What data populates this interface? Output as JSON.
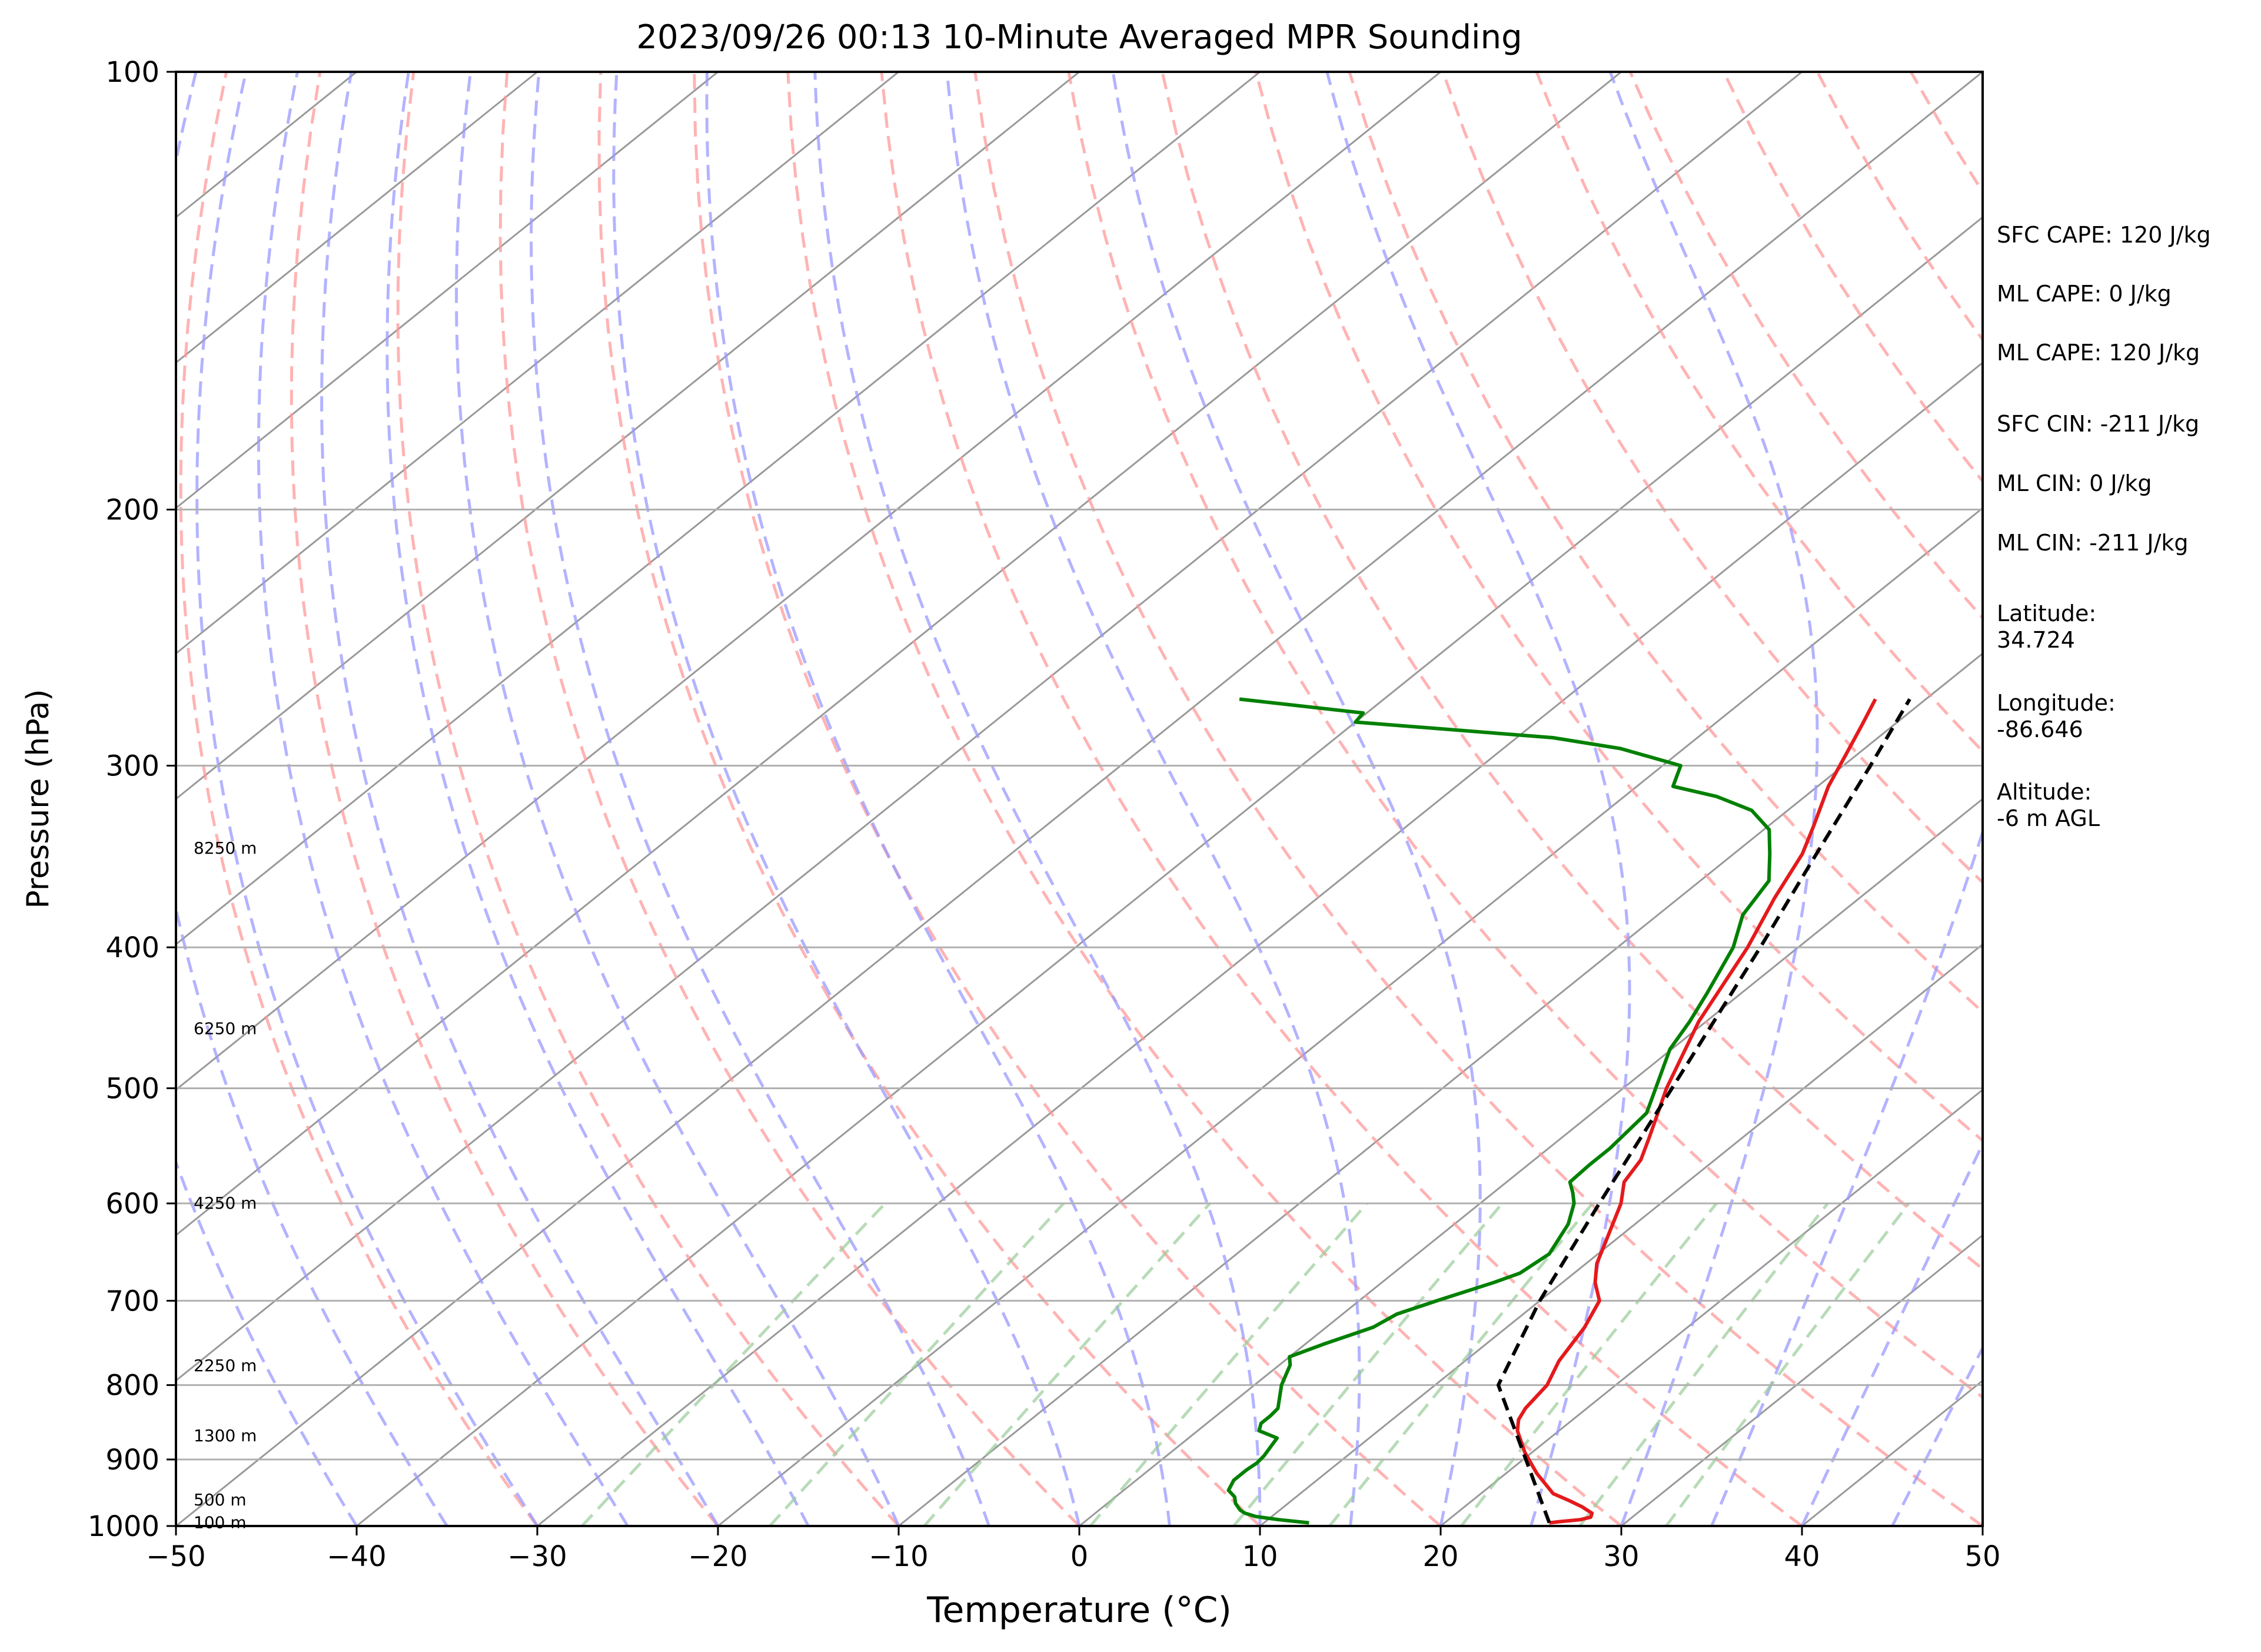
{
  "chart_data": {
    "type": "line",
    "title": "2023/09/26 00:13 10-Minute Averaged MPR Sounding",
    "xlabel": "Temperature (°C)",
    "ylabel": "Pressure (hPa)",
    "xlim": [
      -50,
      50
    ],
    "ylim": [
      1000,
      100
    ],
    "y_scale": "log",
    "skew": "skew-T",
    "grid": true,
    "x_ticks": [
      -50,
      -40,
      -30,
      -20,
      -10,
      0,
      10,
      20,
      30,
      40,
      50
    ],
    "x_tick_labels": [
      "−50",
      "−40",
      "−30",
      "−20",
      "−10",
      "0",
      "10",
      "20",
      "30",
      "40",
      "50"
    ],
    "y_ticks": [
      1000,
      900,
      800,
      700,
      600,
      500,
      400,
      300,
      200,
      100
    ],
    "y_tick_labels": [
      "1000",
      "900",
      "800",
      "700",
      "600",
      "500",
      "400",
      "300",
      "200",
      "100"
    ],
    "height_labels": [
      {
        "p": 995,
        "text": "100 m"
      },
      {
        "p": 960,
        "text": "500 m"
      },
      {
        "p": 867,
        "text": "1300 m"
      },
      {
        "p": 776,
        "text": "2250 m"
      },
      {
        "p": 600,
        "text": "4250 m"
      },
      {
        "p": 455,
        "text": "6250 m"
      },
      {
        "p": 342,
        "text": "8250 m"
      }
    ],
    "series": [
      {
        "color": "#e41a1c",
        "style": "solid",
        "points": [
          [
            995,
            25.8
          ],
          [
            993,
            26.3
          ],
          [
            990,
            27.3
          ],
          [
            986,
            27.7
          ],
          [
            980,
            27.5
          ],
          [
            970,
            26.5
          ],
          [
            960,
            25.3
          ],
          [
            950,
            24.0
          ],
          [
            920,
            21.7
          ],
          [
            890,
            19.6
          ],
          [
            860,
            17.7
          ],
          [
            845,
            17.0
          ],
          [
            830,
            16.6
          ],
          [
            800,
            16.2
          ],
          [
            770,
            15.2
          ],
          [
            730,
            14.3
          ],
          [
            700,
            13.3
          ],
          [
            680,
            11.8
          ],
          [
            660,
            10.6
          ],
          [
            640,
            9.7
          ],
          [
            600,
            7.8
          ],
          [
            580,
            6.5
          ],
          [
            560,
            5.9
          ],
          [
            540,
            4.8
          ],
          [
            500,
            2.4
          ],
          [
            450,
            -0.4
          ],
          [
            400,
            -2.8
          ],
          [
            370,
            -4.7
          ],
          [
            345,
            -6.2
          ],
          [
            330,
            -7.5
          ],
          [
            310,
            -9.4
          ],
          [
            295,
            -10.6
          ],
          [
            282,
            -11.7
          ],
          [
            270,
            -12.8
          ]
        ]
      },
      {
        "color": "#008000",
        "style": "solid",
        "points": [
          [
            995,
            12.5
          ],
          [
            990,
            10.6
          ],
          [
            985,
            9.1
          ],
          [
            980,
            8.3
          ],
          [
            975,
            7.8
          ],
          [
            965,
            7.1
          ],
          [
            955,
            6.6
          ],
          [
            945,
            5.8
          ],
          [
            930,
            5.4
          ],
          [
            915,
            5.4
          ],
          [
            905,
            5.5
          ],
          [
            895,
            5.4
          ],
          [
            880,
            5.1
          ],
          [
            870,
            4.9
          ],
          [
            860,
            3.4
          ],
          [
            850,
            3.0
          ],
          [
            840,
            3.0
          ],
          [
            830,
            2.9
          ],
          [
            800,
            1.5
          ],
          [
            775,
            0.6
          ],
          [
            765,
            0.0
          ],
          [
            750,
            1.0
          ],
          [
            730,
            2.6
          ],
          [
            715,
            3.0
          ],
          [
            700,
            4.3
          ],
          [
            680,
            6.2
          ],
          [
            670,
            7.0
          ],
          [
            650,
            7.3
          ],
          [
            620,
            6.3
          ],
          [
            600,
            5.2
          ],
          [
            590,
            4.4
          ],
          [
            580,
            3.5
          ],
          [
            565,
            3.4
          ],
          [
            550,
            3.4
          ],
          [
            520,
            3.0
          ],
          [
            500,
            1.8
          ],
          [
            470,
            -0.1
          ],
          [
            450,
            -0.9
          ],
          [
            430,
            -1.9
          ],
          [
            400,
            -3.6
          ],
          [
            380,
            -5.3
          ],
          [
            360,
            -6.2
          ],
          [
            345,
            -8.0
          ],
          [
            332,
            -9.7
          ],
          [
            322,
            -12.0
          ],
          [
            315,
            -14.9
          ],
          [
            310,
            -18.0
          ],
          [
            300,
            -19.0
          ],
          [
            292,
            -23.5
          ],
          [
            287,
            -28.0
          ],
          [
            280,
            -40.0
          ],
          [
            276,
            -40.2
          ],
          [
            270,
            -48.0
          ]
        ]
      },
      {
        "color": "#000000",
        "style": "dashed",
        "points": [
          [
            995,
            25.8
          ],
          [
            800,
            13.5
          ],
          [
            700,
            10.0
          ],
          [
            600,
            6.6
          ],
          [
            500,
            2.7
          ],
          [
            400,
            -2.1
          ],
          [
            350,
            -5.1
          ],
          [
            300,
            -8.5
          ],
          [
            270,
            -10.9
          ]
        ]
      }
    ],
    "annotations": [
      {
        "text": "SFC CAPE: 120 J/kg",
        "row": 0
      },
      {
        "text": "ML CAPE: 0 J/kg",
        "row": 1
      },
      {
        "text": "ML CAPE: 120 J/kg",
        "row": 2
      },
      {
        "text": "SFC CIN: -211 J/kg",
        "row": 3
      },
      {
        "text": "ML CIN: 0 J/kg",
        "row": 4
      },
      {
        "text": "ML CIN: -211 J/kg",
        "row": 5
      },
      {
        "text": "Latitude:",
        "row": 6
      },
      {
        "text": "34.724",
        "row": 7
      },
      {
        "text": "Longitude:",
        "row": 8
      },
      {
        "text": "-86.646",
        "row": 9
      },
      {
        "text": "Altitude:",
        "row": 10
      },
      {
        "text": "-6 m AGL",
        "row": 11
      }
    ],
    "background": {
      "isotherm_color": "#999999",
      "dry_adiabat_color": "#ff9999",
      "moist_adiabat_color": "#9999ff",
      "mixing_ratio_color": "#99cc99"
    }
  }
}
